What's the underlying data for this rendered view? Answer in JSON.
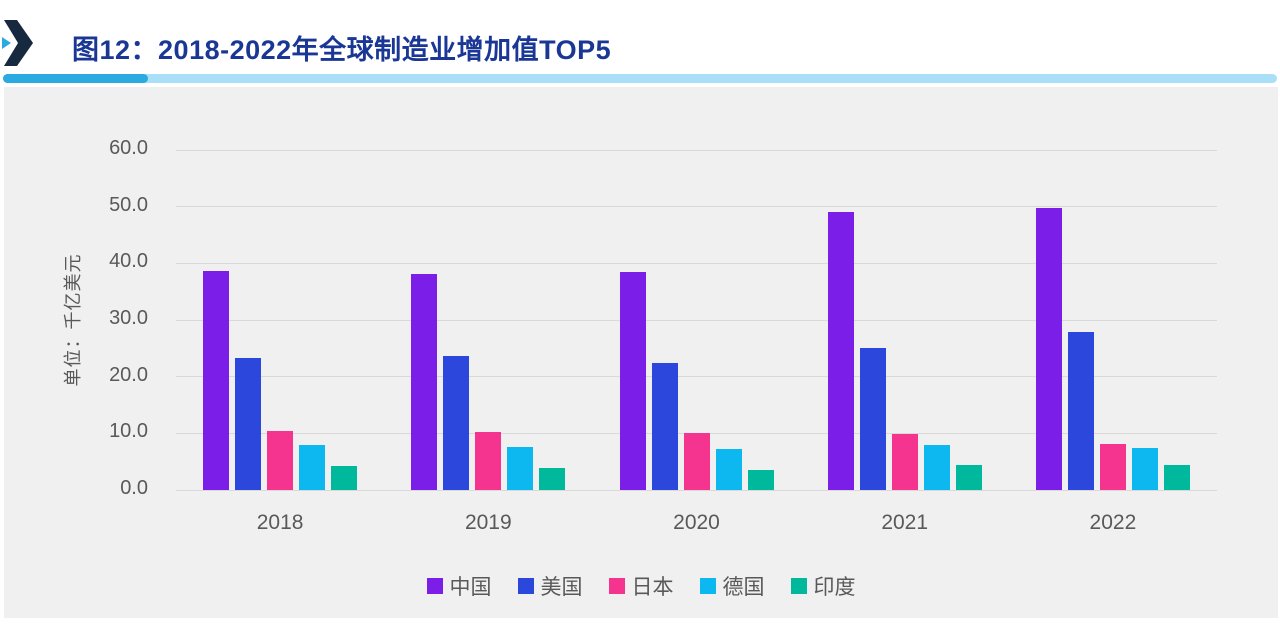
{
  "header": {
    "title": "图12：2018-2022年全球制造业增加值TOP5"
  },
  "icons": {
    "chevron_right": "chevron-right-icon"
  },
  "colors": {
    "title_text": "#1A3796",
    "chevron_navy": "#17293E",
    "accent_cyan": "#29ABE2",
    "accent_light_blue": "#A9DFF7",
    "card_background": "#F0F0F0",
    "gridline": "#D9D9D9",
    "axis_text": "#595959"
  },
  "chart_data": {
    "type": "bar",
    "title": "图12：2018-2022年全球制造业增加值TOP5",
    "xlabel": "",
    "ylabel": "单位：千亿美元",
    "categories": [
      "2018",
      "2019",
      "2020",
      "2021",
      "2022"
    ],
    "series": [
      {
        "name": "中国",
        "color": "#7B1FE8",
        "values": [
          38.6,
          38.2,
          38.5,
          49.0,
          49.8
        ]
      },
      {
        "name": "美国",
        "color": "#2B47DC",
        "values": [
          23.3,
          23.6,
          22.4,
          25.0,
          27.9
        ]
      },
      {
        "name": "日本",
        "color": "#F5348F",
        "values": [
          10.4,
          10.3,
          10.0,
          9.9,
          8.2
        ]
      },
      {
        "name": "德国",
        "color": "#0DB7F0",
        "values": [
          7.9,
          7.6,
          7.3,
          8.0,
          7.4
        ]
      },
      {
        "name": "印度",
        "color": "#00B89B",
        "values": [
          4.2,
          3.9,
          3.6,
          4.4,
          4.5
        ]
      }
    ],
    "ylim": [
      0,
      60
    ],
    "y_ticks": [
      "0.0",
      "10.0",
      "20.0",
      "30.0",
      "40.0",
      "50.0",
      "60.0"
    ],
    "grid": true,
    "legend_position": "bottom"
  }
}
